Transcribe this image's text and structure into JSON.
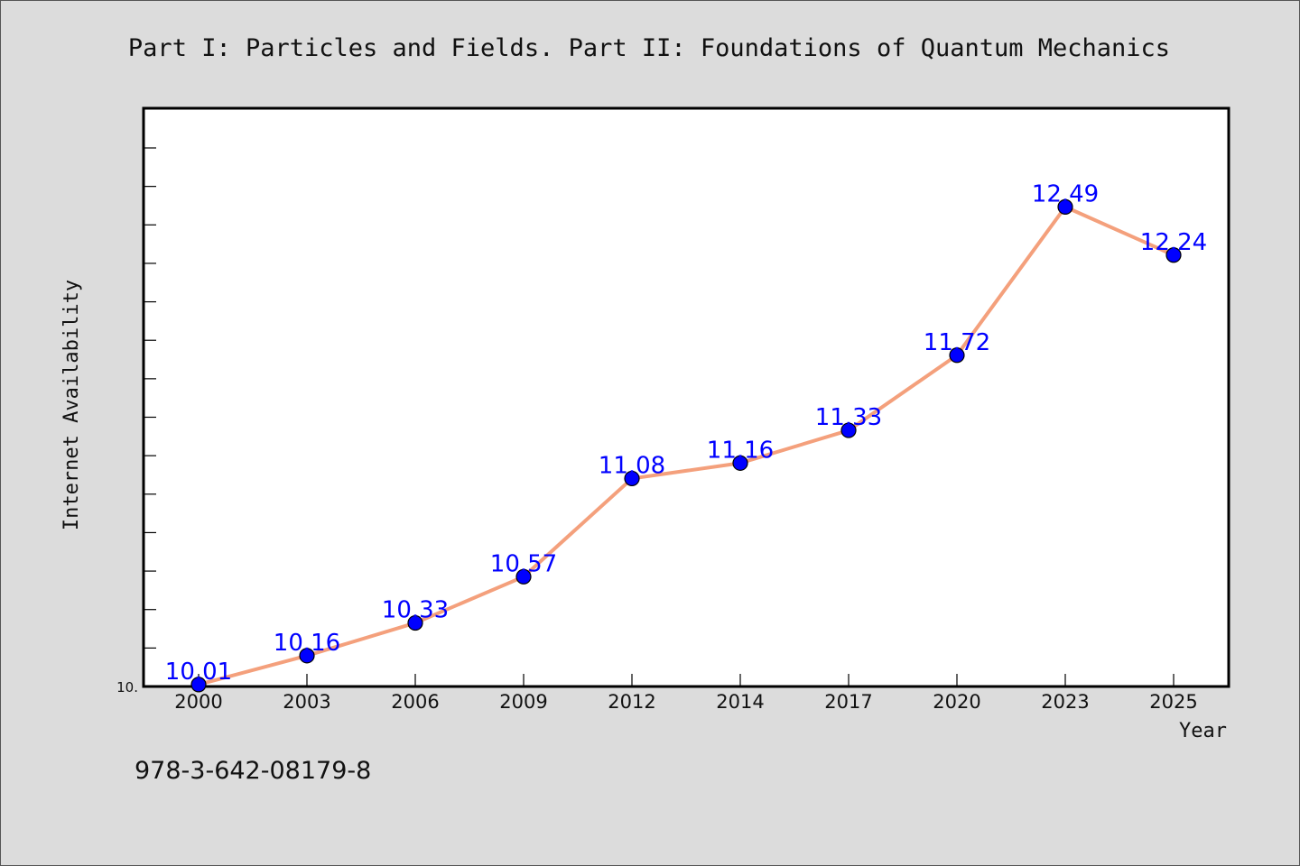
{
  "chart_data": {
    "type": "line",
    "title": "Part I: Particles and Fields. Part II: Foundations of Quantum Mechanics",
    "xlabel": "Year",
    "ylabel": "Internet Availability",
    "x": [
      "2000",
      "2003",
      "2006",
      "2009",
      "2012",
      "2014",
      "2017",
      "2020",
      "2023",
      "2025"
    ],
    "series": [
      {
        "values": [
          10.01,
          10.16,
          10.33,
          10.57,
          11.08,
          11.16,
          11.33,
          11.72,
          12.49,
          12.24
        ],
        "labels": [
          "10.01",
          "10.16",
          "10.33",
          "10.57",
          "11.08",
          "11.16",
          "11.33",
          "11.72",
          "12.49",
          "12.24"
        ]
      }
    ],
    "y_tick_labels": [
      "10."
    ],
    "ylim": [
      10.0,
      13.0
    ],
    "grid": false,
    "legend": "none",
    "line_color": "#f4a07c",
    "marker_color": "#0000ff",
    "label_color": "#0000ff"
  },
  "footnote": "978-3-642-08179-8",
  "colors": {
    "background": "#dcdcdc",
    "plot_background": "#ffffff",
    "axis": "#000000"
  }
}
